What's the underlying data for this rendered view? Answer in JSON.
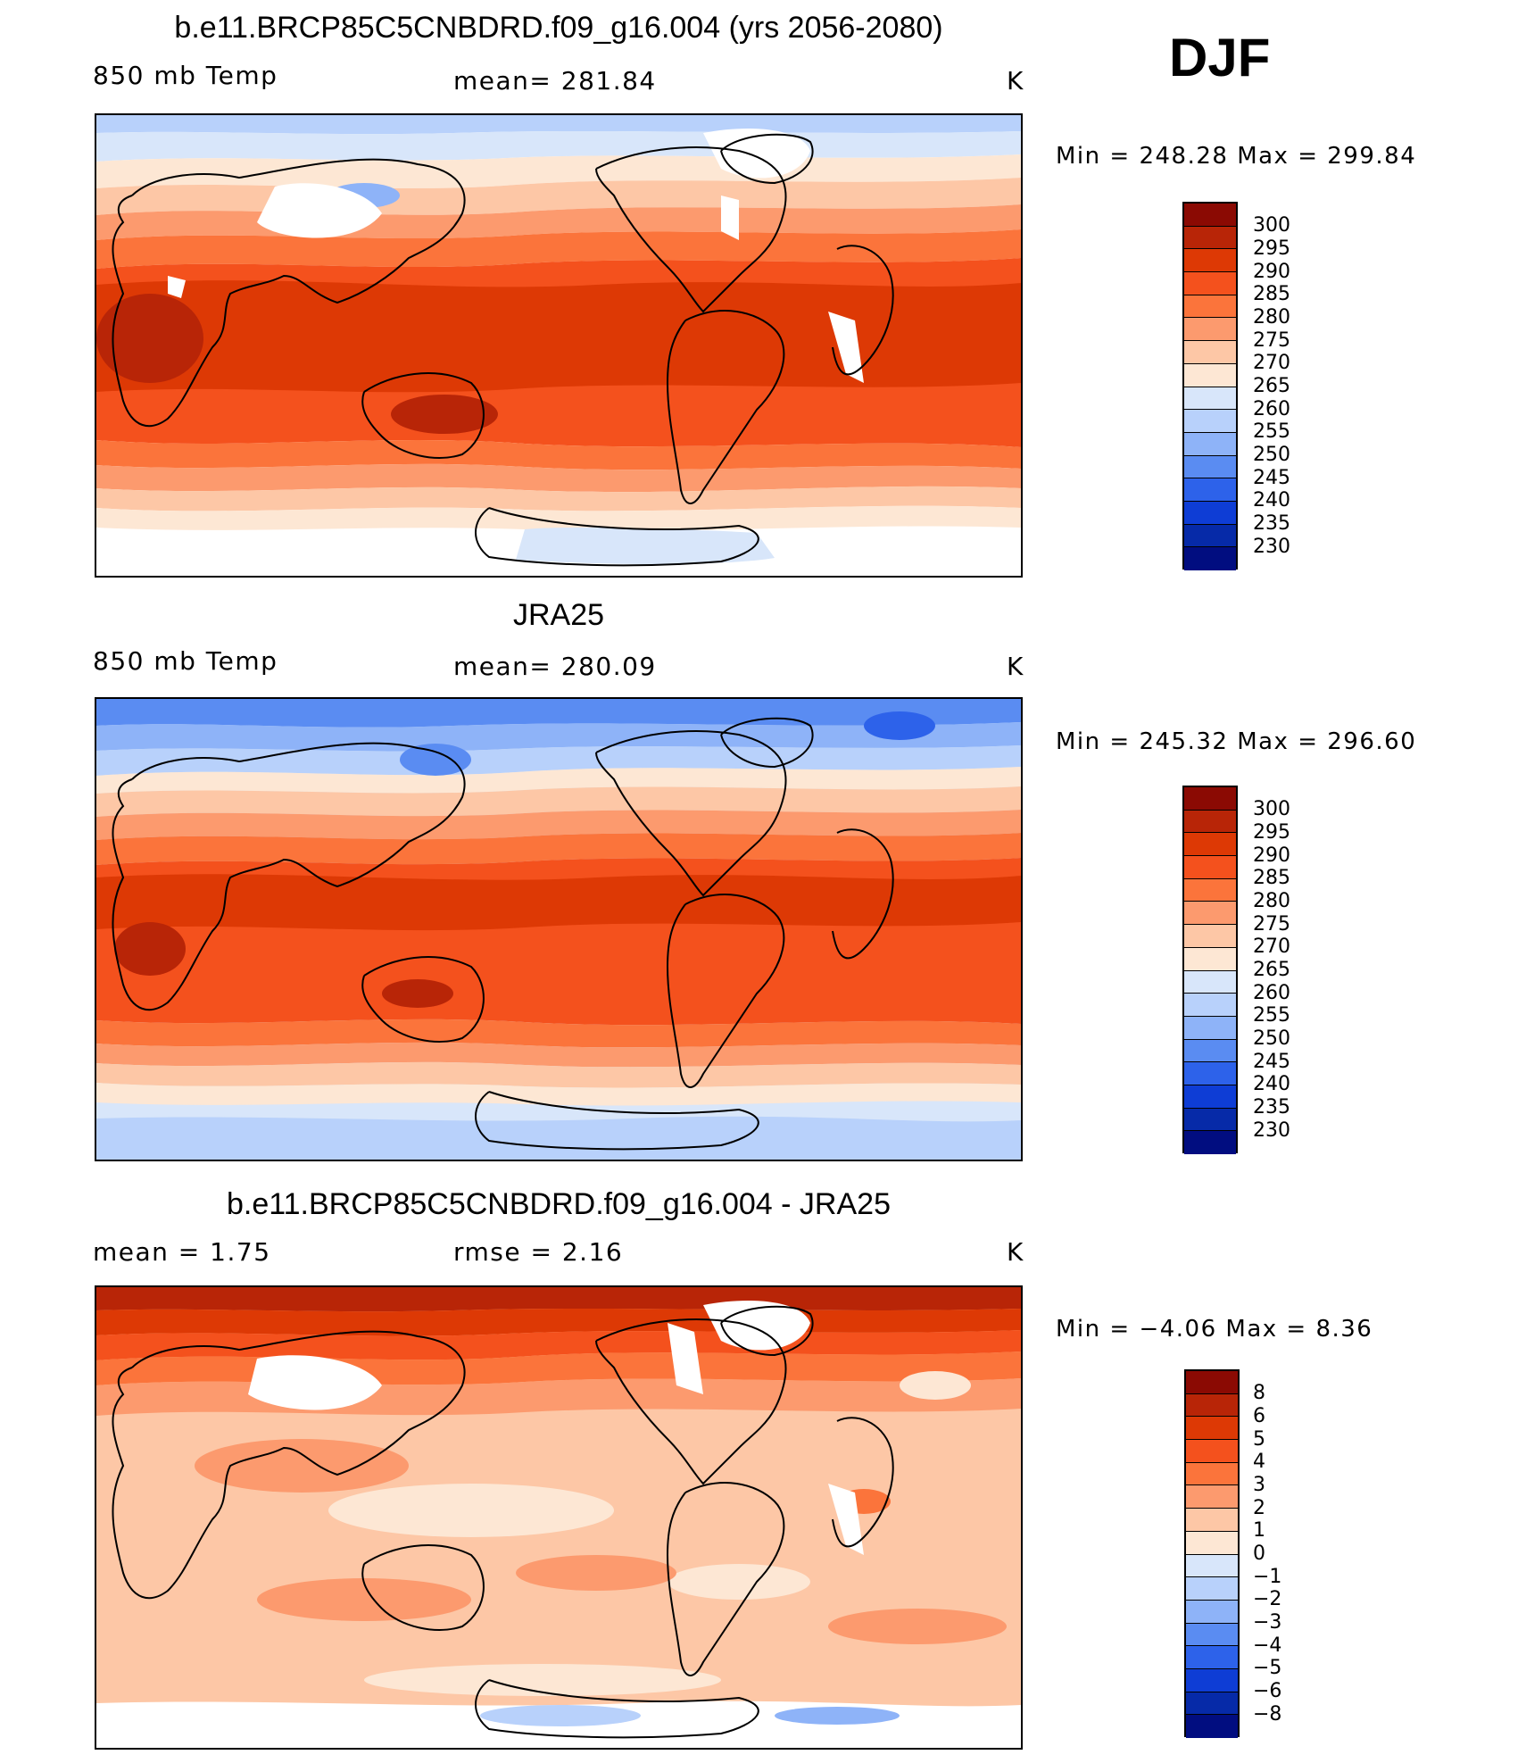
{
  "season": "DJF",
  "panels": [
    {
      "title": "b.e11.BRCP85C5CNBDRD.f09_g16.004 (yrs 2056-2080)",
      "left_label": "850 mb Temp",
      "center_label": "mean= 281.84",
      "units": "K",
      "minmax": "Min  =  248.28  Max  =  299.84",
      "colorbar": {
        "levels": [
          "300",
          "295",
          "290",
          "285",
          "280",
          "275",
          "270",
          "265",
          "260",
          "255",
          "250",
          "245",
          "240",
          "235",
          "230"
        ],
        "colors": [
          "#8b0a03",
          "#b82507",
          "#dd3905",
          "#f4511d",
          "#fb743b",
          "#fc9a6e",
          "#fdc7a6",
          "#fde7d4",
          "#d8e6fa",
          "#b8d1fb",
          "#8eb3f8",
          "#5a8cf2",
          "#2d62ea",
          "#0e3dd5",
          "#062aa8",
          "#010d80"
        ]
      }
    },
    {
      "title": "JRA25",
      "left_label": "850 mb Temp",
      "center_label": "mean= 280.09",
      "units": "K",
      "minmax": "Min  =  245.32  Max  =  296.60",
      "colorbar": {
        "levels": [
          "300",
          "295",
          "290",
          "285",
          "280",
          "275",
          "270",
          "265",
          "260",
          "255",
          "250",
          "245",
          "240",
          "235",
          "230"
        ],
        "colors": [
          "#8b0a03",
          "#b82507",
          "#dd3905",
          "#f4511d",
          "#fb743b",
          "#fc9a6e",
          "#fdc7a6",
          "#fde7d4",
          "#d8e6fa",
          "#b8d1fb",
          "#8eb3f8",
          "#5a8cf2",
          "#2d62ea",
          "#0e3dd5",
          "#062aa8",
          "#010d80"
        ]
      }
    },
    {
      "title": "b.e11.BRCP85C5CNBDRD.f09_g16.004 - JRA25",
      "left_label": "mean =     1.75",
      "center_label": "rmse =     2.16",
      "units": "K",
      "minmax": "Min  =    −4.06  Max  =     8.36",
      "colorbar": {
        "levels": [
          "8",
          "6",
          "5",
          "4",
          "3",
          "2",
          "1",
          "0",
          "−1",
          "−2",
          "−3",
          "−4",
          "−5",
          "−6",
          "−8"
        ],
        "colors": [
          "#8b0a03",
          "#b82507",
          "#dd3905",
          "#f4511d",
          "#fb743b",
          "#fc9a6e",
          "#fdc7a6",
          "#fde7d4",
          "#d8e6fa",
          "#b8d1fb",
          "#8eb3f8",
          "#5a8cf2",
          "#2d62ea",
          "#0e3dd5",
          "#062aa8",
          "#010d80"
        ]
      }
    }
  ]
}
